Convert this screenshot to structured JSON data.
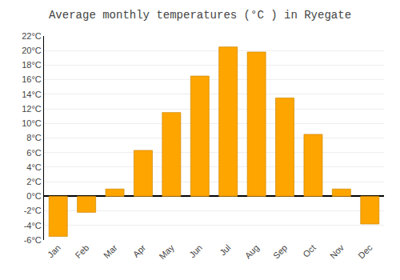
{
  "chart_data": {
    "type": "bar",
    "title": "Average monthly temperatures (°C ) in Ryegate",
    "categories": [
      "Jan",
      "Feb",
      "Mar",
      "Apr",
      "May",
      "Jun",
      "Jul",
      "Aug",
      "Sep",
      "Oct",
      "Nov",
      "Dec"
    ],
    "values": [
      -5.5,
      -2.2,
      1.0,
      6.3,
      11.5,
      16.5,
      20.5,
      19.8,
      13.5,
      8.5,
      1.0,
      -3.8
    ],
    "color": "#FFA500",
    "ylim": [
      -6,
      22
    ],
    "yticks": [
      {
        "value": -6,
        "label": "-6°C"
      },
      {
        "value": -4,
        "label": "-4°C"
      },
      {
        "value": -2,
        "label": "-2°C"
      },
      {
        "value": 0,
        "label": "0°C"
      },
      {
        "value": 2,
        "label": "2°C"
      },
      {
        "value": 4,
        "label": "4°C"
      },
      {
        "value": 6,
        "label": "6°C"
      },
      {
        "value": 8,
        "label": "8°C"
      },
      {
        "value": 10,
        "label": "10°C"
      },
      {
        "value": 12,
        "label": "12°C"
      },
      {
        "value": 14,
        "label": "14°C"
      },
      {
        "value": 16,
        "label": "16°C"
      },
      {
        "value": 18,
        "label": "18°C"
      },
      {
        "value": 20,
        "label": "20°C"
      },
      {
        "value": 22,
        "label": "22°C"
      }
    ],
    "grid": true
  }
}
